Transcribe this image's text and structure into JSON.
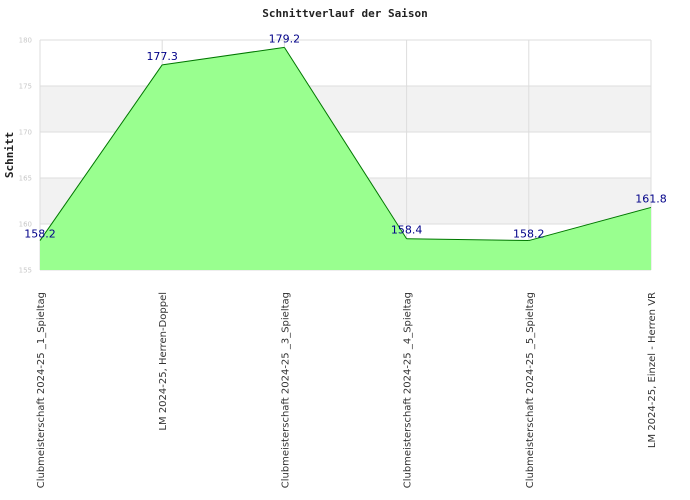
{
  "chart_data": {
    "type": "area",
    "title": "Schnittverlauf der Saison",
    "xlabel": "",
    "ylabel": "Schnitt",
    "ylim": [
      155,
      180
    ],
    "yticks": [
      "155",
      "160",
      "165",
      "170",
      "175",
      "180"
    ],
    "grid": true,
    "categories": [
      "Clubmeisterschaft 2024-25 _1_Spieltag",
      "LM 2024-25, Herren-Doppel",
      "Clubmeisterschaft 2024-25 _3_Spieltag",
      "Clubmeisterschaft 2024-25 _4_Spieltag",
      "Clubmeisterschaft 2024-25 _5_Spieltag",
      "LM 2024-25, Einzel - Herren VR"
    ],
    "values": [
      158.2,
      177.3,
      179.2,
      158.4,
      158.2,
      161.8
    ],
    "data_labels": [
      "158.2",
      "177.3",
      "179.2",
      "158.4",
      "158.2",
      "161.8"
    ],
    "colors": {
      "fill": "#99ff8f",
      "line": "#007700",
      "band": "#f2f2f2",
      "grid": "#dddddd",
      "label": "#000088"
    }
  }
}
